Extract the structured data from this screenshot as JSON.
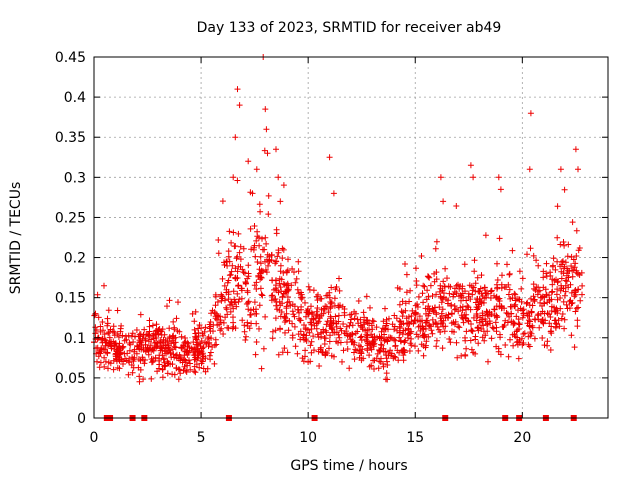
{
  "chart_data": {
    "type": "scatter",
    "title": "Day 133 of 2023, SRMTID for receiver ab49",
    "xlabel": "GPS time / hours",
    "ylabel": "SRMTID / TECUs",
    "xlim": [
      0,
      24
    ],
    "ylim": [
      0,
      0.45
    ],
    "x_ticks": [
      0,
      5,
      10,
      15,
      20
    ],
    "x_tick_labels": [
      "0",
      "5",
      "10",
      "15",
      "20"
    ],
    "y_ticks": [
      0,
      0.05,
      0.1,
      0.15,
      0.2,
      0.25,
      0.3,
      0.35,
      0.4,
      0.45
    ],
    "y_tick_labels": [
      "0",
      "0.05",
      "0.1",
      "0.15",
      "0.2",
      "0.25",
      "0.3",
      "0.35",
      "0.4",
      "0.45"
    ],
    "grid": true,
    "marker": "+",
    "color": "#ee0000",
    "x_range_data": [
      0.0,
      22.8
    ],
    "profile": [
      {
        "x": 0.0,
        "center": 0.105,
        "spread": 0.03
      },
      {
        "x": 0.5,
        "center": 0.09,
        "spread": 0.03
      },
      {
        "x": 1.0,
        "center": 0.085,
        "spread": 0.028
      },
      {
        "x": 1.8,
        "center": 0.08,
        "spread": 0.03
      },
      {
        "x": 2.5,
        "center": 0.09,
        "spread": 0.035
      },
      {
        "x": 3.5,
        "center": 0.085,
        "spread": 0.035
      },
      {
        "x": 4.5,
        "center": 0.08,
        "spread": 0.03
      },
      {
        "x": 5.5,
        "center": 0.095,
        "spread": 0.03
      },
      {
        "x": 6.0,
        "center": 0.15,
        "spread": 0.05
      },
      {
        "x": 7.0,
        "center": 0.17,
        "spread": 0.07
      },
      {
        "x": 8.0,
        "center": 0.18,
        "spread": 0.08
      },
      {
        "x": 9.0,
        "center": 0.15,
        "spread": 0.06
      },
      {
        "x": 10.0,
        "center": 0.12,
        "spread": 0.04
      },
      {
        "x": 11.0,
        "center": 0.12,
        "spread": 0.04
      },
      {
        "x": 12.0,
        "center": 0.11,
        "spread": 0.035
      },
      {
        "x": 13.0,
        "center": 0.09,
        "spread": 0.03
      },
      {
        "x": 14.0,
        "center": 0.095,
        "spread": 0.035
      },
      {
        "x": 15.0,
        "center": 0.12,
        "spread": 0.04
      },
      {
        "x": 16.0,
        "center": 0.14,
        "spread": 0.05
      },
      {
        "x": 17.0,
        "center": 0.13,
        "spread": 0.05
      },
      {
        "x": 18.5,
        "center": 0.13,
        "spread": 0.05
      },
      {
        "x": 20.0,
        "center": 0.13,
        "spread": 0.05
      },
      {
        "x": 21.0,
        "center": 0.14,
        "spread": 0.05
      },
      {
        "x": 22.0,
        "center": 0.16,
        "spread": 0.06
      },
      {
        "x": 22.8,
        "center": 0.15,
        "spread": 0.05
      }
    ],
    "peaks": [
      {
        "x": 6.6,
        "y": 0.35
      },
      {
        "x": 6.7,
        "y": 0.41
      },
      {
        "x": 6.8,
        "y": 0.39
      },
      {
        "x": 7.2,
        "y": 0.32
      },
      {
        "x": 7.4,
        "y": 0.28
      },
      {
        "x": 7.9,
        "y": 0.45
      },
      {
        "x": 8.0,
        "y": 0.385
      },
      {
        "x": 8.05,
        "y": 0.36
      },
      {
        "x": 8.1,
        "y": 0.33
      },
      {
        "x": 8.5,
        "y": 0.335
      },
      {
        "x": 8.6,
        "y": 0.3
      },
      {
        "x": 8.7,
        "y": 0.27
      },
      {
        "x": 7.6,
        "y": 0.31
      },
      {
        "x": 6.5,
        "y": 0.3
      },
      {
        "x": 11.0,
        "y": 0.325
      },
      {
        "x": 11.2,
        "y": 0.28
      },
      {
        "x": 16.2,
        "y": 0.3
      },
      {
        "x": 16.3,
        "y": 0.27
      },
      {
        "x": 17.6,
        "y": 0.315
      },
      {
        "x": 17.7,
        "y": 0.3
      },
      {
        "x": 18.9,
        "y": 0.3
      },
      {
        "x": 19.0,
        "y": 0.285
      },
      {
        "x": 20.4,
        "y": 0.38
      },
      {
        "x": 20.35,
        "y": 0.31
      },
      {
        "x": 21.8,
        "y": 0.31
      },
      {
        "x": 22.5,
        "y": 0.335
      },
      {
        "x": 22.6,
        "y": 0.31
      }
    ],
    "gap_markers": [
      0.6,
      0.75,
      1.8,
      2.35,
      6.3,
      10.3,
      16.4,
      19.2,
      19.85,
      21.1,
      22.4
    ]
  }
}
